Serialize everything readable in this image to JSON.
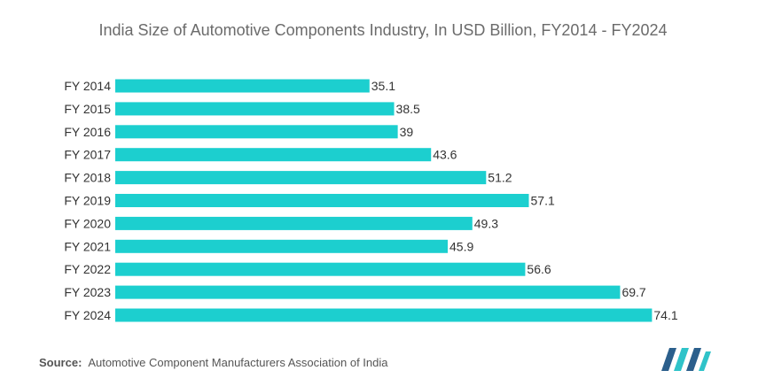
{
  "colors": {
    "bar": "#1ccfcf",
    "text": "#333333",
    "title": "#6b6b6b",
    "logo_dark": "#2b5f8c",
    "logo_light": "#2fc3c9"
  },
  "chart_data": {
    "type": "bar",
    "orientation": "horizontal",
    "title": "India Size of Automotive Components Industry, In USD Billion, FY2014 - FY2024",
    "xlabel": "",
    "ylabel": "",
    "grid": false,
    "legend": "none",
    "xlim": [
      0,
      80
    ],
    "categories": [
      "FY 2014",
      "FY 2015",
      "FY 2016",
      "FY 2017",
      "FY 2018",
      "FY 2019",
      "FY 2020",
      "FY 2021",
      "FY 2022",
      "FY 2023",
      "FY 2024"
    ],
    "values": [
      35.1,
      38.5,
      39,
      43.6,
      51.2,
      57.1,
      49.3,
      45.9,
      56.6,
      69.7,
      74.1
    ],
    "value_labels": [
      "35.1",
      "38.5",
      "39",
      "43.6",
      "51.2",
      "57.1",
      "49.3",
      "45.9",
      "56.6",
      "69.7",
      "74.1"
    ]
  },
  "source": {
    "label": "Source:",
    "text": "Automotive Component Manufacturers Association of India"
  },
  "logo": {
    "icon": "mordor-intelligence-logo"
  }
}
